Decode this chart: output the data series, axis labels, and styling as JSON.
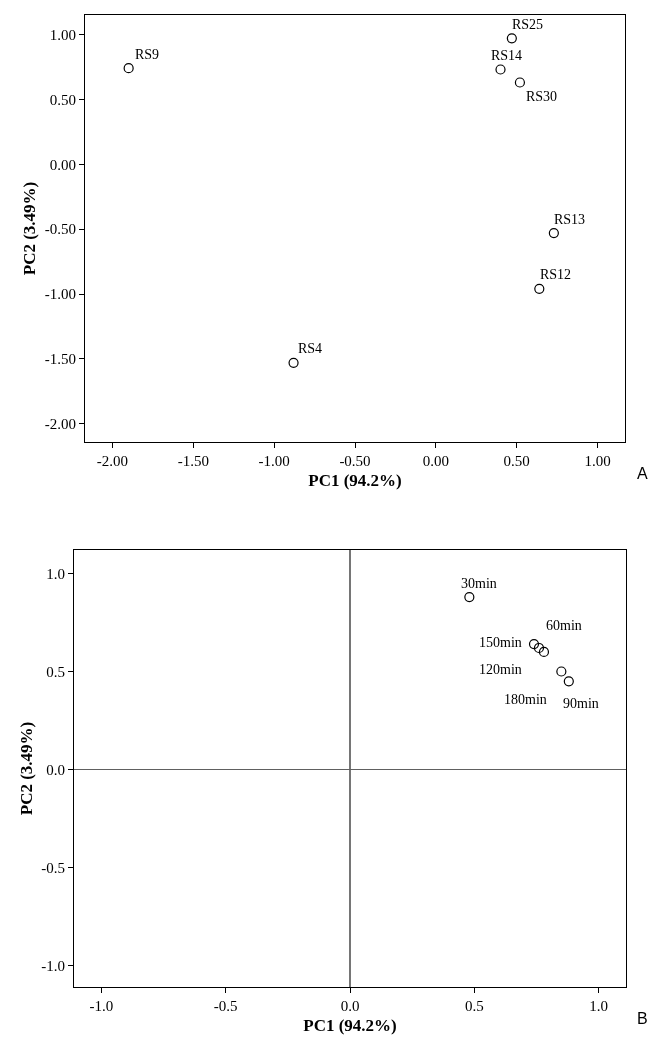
{
  "chart_data": [
    {
      "type": "scatter",
      "xlabel": "PC1 (94.2%)",
      "ylabel": "PC2 (3.49%)",
      "series": [
        {
          "color": "#000000",
          "x": [
            -1.9,
            0.47,
            0.4,
            0.52,
            0.73,
            0.64,
            -0.88
          ],
          "values": [
            0.74,
            0.97,
            0.73,
            0.63,
            -0.53,
            -0.96,
            -1.53
          ]
        }
      ],
      "annotations": [
        {
          "text": "RS9",
          "x": -1.9,
          "y": 0.74
        },
        {
          "text": "RS25",
          "x": 0.47,
          "y": 0.97
        },
        {
          "text": "RS14",
          "x": 0.4,
          "y": 0.73
        },
        {
          "text": "RS30",
          "x": 0.52,
          "y": 0.63
        },
        {
          "text": "RS13",
          "x": 0.73,
          "y": -0.53
        },
        {
          "text": "RS12",
          "x": 0.64,
          "y": -0.96
        },
        {
          "text": "RS4",
          "x": -0.88,
          "y": -1.53
        },
        "A"
      ],
      "xlim": [
        -2.17,
        1.17
      ],
      "ylim": [
        -2.14,
        1.15
      ],
      "xticks": [
        {
          "value": -2,
          "label": "-2.00"
        },
        {
          "value": -1.5,
          "label": "-1.50"
        },
        {
          "value": -1,
          "label": "-1.00"
        },
        {
          "value": -0.5,
          "label": "-0.50"
        },
        {
          "value": 0,
          "label": "0.00"
        },
        {
          "value": 0.5,
          "label": "0.50"
        },
        {
          "value": 1,
          "label": "1.00"
        }
      ],
      "yticks": [
        {
          "value": -2,
          "label": "-2.00"
        },
        {
          "value": -1.5,
          "label": "-1.50"
        },
        {
          "value": -1,
          "label": "-1.00"
        },
        {
          "value": -0.5,
          "label": "-0.50"
        },
        {
          "value": 0,
          "label": "0.00"
        },
        {
          "value": 0.5,
          "label": "0.50"
        },
        {
          "value": 1,
          "label": "1.00"
        }
      ],
      "marker": "circle"
    },
    {
      "type": "scatter",
      "xlabel": "PC1 (94.2%)",
      "ylabel": "PC2 (3.49%)",
      "series": [
        {
          "color": "#000000",
          "x": [
            0.48,
            0.74,
            0.76,
            0.78,
            0.85,
            0.88
          ],
          "values": [
            0.88,
            0.64,
            0.62,
            0.6,
            0.5,
            0.45
          ]
        }
      ],
      "annotations": [
        {
          "text": "30min",
          "x": 0.48,
          "y": 0.88
        },
        {
          "text": "60min",
          "x": 0.78,
          "y": 0.6
        },
        {
          "text": "150min",
          "x": 0.74,
          "y": 0.64
        },
        {
          "text": "120min",
          "x": 0.76,
          "y": 0.62
        },
        {
          "text": "180min",
          "x": 0.85,
          "y": 0.5
        },
        {
          "text": "90min",
          "x": 0.88,
          "y": 0.45
        },
        "B"
      ],
      "xlim": [
        -1.11,
        1.11
      ],
      "ylim": [
        -1.11,
        1.12
      ],
      "xticks": [
        {
          "value": -1,
          "label": "-1.0"
        },
        {
          "value": -0.5,
          "label": "-0.5"
        },
        {
          "value": 0,
          "label": "0.0"
        },
        {
          "value": 0.5,
          "label": "0.5"
        },
        {
          "value": 1,
          "label": "1.0"
        }
      ],
      "yticks": [
        {
          "value": -1,
          "label": "-1.0"
        },
        {
          "value": -0.5,
          "label": "-0.5"
        },
        {
          "value": 0,
          "label": "0.0"
        },
        {
          "value": 0.5,
          "label": "0.5"
        },
        {
          "value": 1,
          "label": "1.0"
        }
      ],
      "ref_lines": [
        {
          "axis": "x",
          "value": 0,
          "color": "#1a1a1a"
        },
        {
          "axis": "y",
          "value": 0,
          "color": "#606060"
        }
      ],
      "marker": "circle"
    }
  ]
}
